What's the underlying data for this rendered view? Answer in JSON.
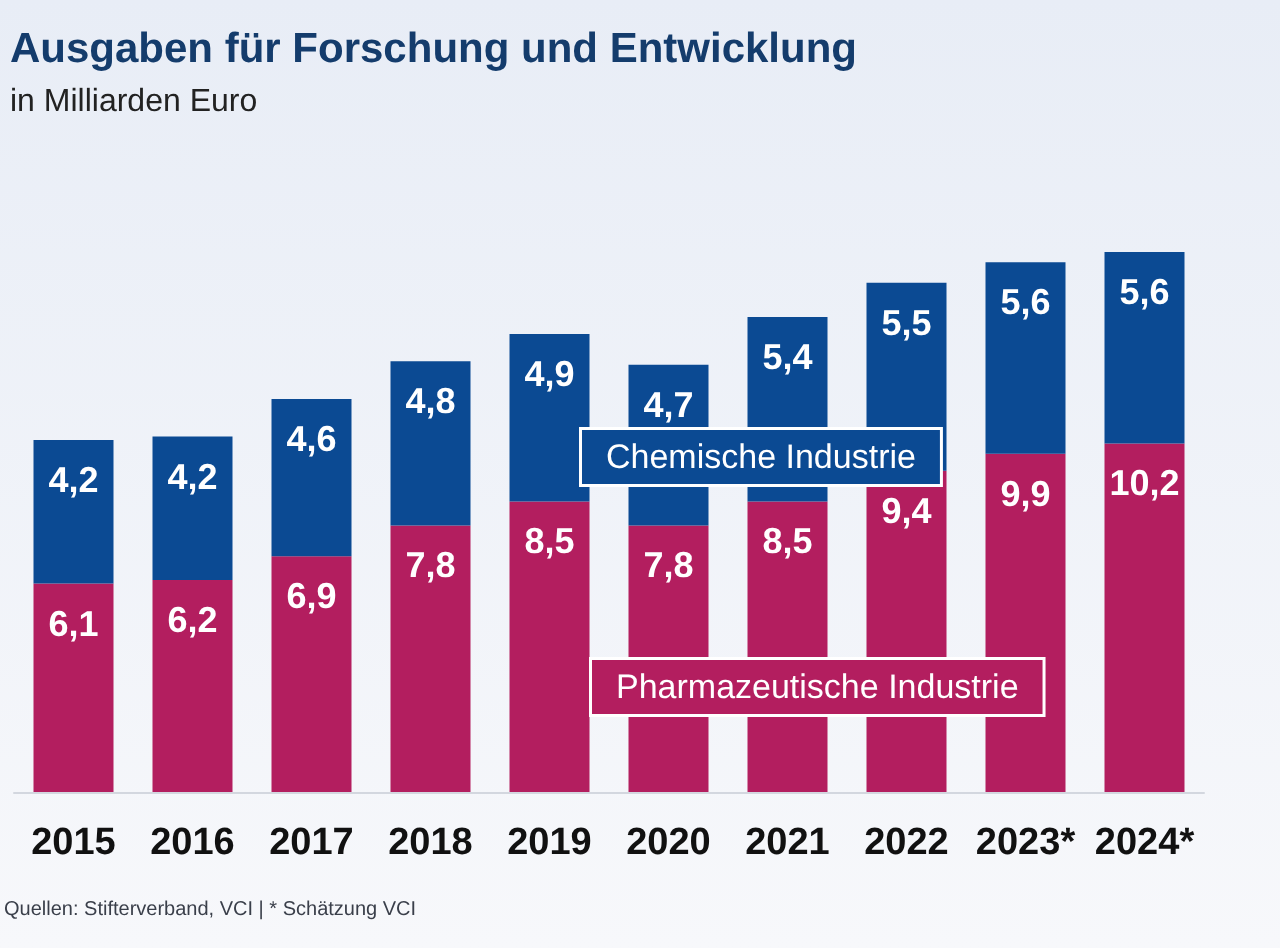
{
  "chart_data": {
    "type": "bar",
    "title": "Ausgaben für Forschung und Entwicklung",
    "subtitle": "in Milliarden Euro",
    "categories": [
      "2015",
      "2016",
      "2017",
      "2018",
      "2019",
      "2020",
      "2021",
      "2022",
      "2023*",
      "2024*"
    ],
    "series": [
      {
        "name": "Pharmazeutische Industrie",
        "color": "#b31e5f",
        "values": [
          6.1,
          6.2,
          6.9,
          7.8,
          8.5,
          7.8,
          8.5,
          9.4,
          9.9,
          10.2
        ],
        "value_labels": [
          "6,1",
          "6,2",
          "6,9",
          "7,8",
          "8,5",
          "7,8",
          "8,5",
          "9,4",
          "9,9",
          "10,2"
        ]
      },
      {
        "name": "Chemische Industrie",
        "color": "#0b4a93",
        "values": [
          4.2,
          4.2,
          4.6,
          4.8,
          4.9,
          4.7,
          5.4,
          5.5,
          5.6,
          5.6
        ],
        "value_labels": [
          "4,2",
          "4,2",
          "4,6",
          "4,8",
          "4,9",
          "4,7",
          "5,4",
          "5,5",
          "5,6",
          "5,6"
        ]
      }
    ],
    "stacked": true,
    "annotations": [
      "Quellen: Stifterverband, VCI | * Schätzung VCI"
    ]
  }
}
